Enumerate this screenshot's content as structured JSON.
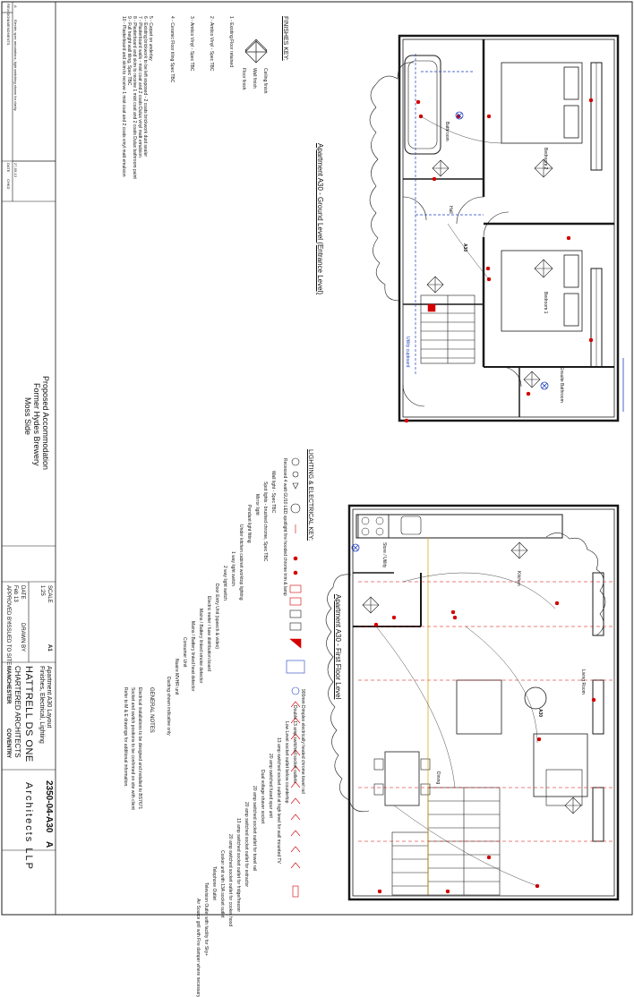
{
  "ground_floor": {
    "title": "Apartment A30 - Ground Level (Entrance Level)",
    "apartment": "A30",
    "rooms": [
      "Bedroom 2",
      "Bedroom 1",
      "Bathroom",
      "Hall",
      "Ensuite Bathroom"
    ],
    "store": "Utility cupboard"
  },
  "first_floor": {
    "title": "Apartment A30 - First Floor Level",
    "apartment": "A30",
    "rooms": [
      "Living Room",
      "Dining",
      "Kitchen",
      "Store / Utility"
    ]
  },
  "finishes_key": {
    "heading": "FINISHES KEY:",
    "diagram_labels": [
      "Ceiling finish",
      "Wall finish",
      "Floor finish"
    ],
    "items": [
      "1 - Existing Floor retained",
      "2 - Amtico Vinyl - Spec TBC",
      "3 - Amtico Vinyl - Spec TBC",
      "4 - Ceramic Floor tiling Spec TBC",
      "5 - Carpet on underlay",
      "6 - Existing brickwork to be left exposed - 2 coats brickwork dust sealer",
      "7 - Plasterboard walls - mist coat and 2 coats Dulux vinyl matt emulsion",
      "8 - Plasterboard and skim to receive 1 mist coat and 2 coats Dulux bathroom paint",
      "9 - Full height wall tiling, Spec TBC",
      "10 - Plasterboard and skim to receive 1 mist coat and 2 coats vinyl matt emulsion"
    ]
  },
  "lighting_key": {
    "heading": "LIGHTING & ELECTRICAL KEY:",
    "items": [
      "Recessed 4 watt GU10 LED spotlight fire hooded chrome trim & lamp",
      "Wall light - Spec TBC",
      "Spot lights - brushed chrome, Spec TBC",
      "Mirror light",
      "Pendant light fitting",
      "Under kitchen cabinet worktop lighting",
      "1 way light switch",
      "2 way light switch",
      "Door Entry Unit (speech & video)",
      "Electric meter / fuse distribution board",
      "Mains / Battery linked smoke detector",
      "Mains / Battery linked heat detector",
      "Consumer Unit",
      "Nuaire MVHR unit",
      "Ducting shown indicative only"
    ]
  },
  "electrical_key": {
    "items": [
      "900mm Dimplex electrically heated chrome towel rail",
      "Double 13 amp switched socket outlets",
      "Low Level socket outlet below countertop",
      "13 amp switched socket outlet at high level for wall mounted TV",
      "20 amp switched fused spur unit",
      "Dual voltage shaver socket",
      "20 amp switched socket outlet for towel rail",
      "20 amp switched socket outlet for extractor",
      "13 amp switched socket outlet for fridge/freezer",
      "20 amp switched socket outlet for cooker hood",
      "Cooker unit with 13A socket outlet",
      "Telephone Outlet",
      "Television Outlet with facility for Sky+",
      "Air Source grill with Fire damper where necessary"
    ],
    "notes_heading": "GENERAL NOTES",
    "notes": [
      "Electrical installations to be designed and installed to BS7671",
      "Socket and switch positions to be confirmed on site with client",
      "Refer to M & E drawings for additional information."
    ]
  },
  "revision": {
    "headers": [
      "REVISION",
      "AMENDMENTS",
      "DATE",
      "CHKD"
    ],
    "rows": [
      [
        "A",
        "Electric spec annotations, light switching shown for clarity.",
        "27-09-13",
        ""
      ]
    ]
  },
  "title_block": {
    "project_lines": [
      "Proposed Accommodation",
      "Former Hydes Brewery",
      "Moss Side"
    ],
    "drawing_title_lines": [
      "Apartment A30 Layout",
      "Finishes, Electrical, Lighting"
    ],
    "scale_label": "SCALE",
    "scale": "1:25",
    "paper_size": "A1",
    "date_label": "DATE",
    "date": "Feb 13",
    "drawn_label": "DRAWN BY",
    "approved_label": "APPROVED BY",
    "issued_label": "ISSUED TO SITE",
    "drawing_no": "2350-04-A30",
    "revision": "A",
    "firm_name_1": "HATTRELL DS ONE",
    "firm_name_2": "Architects LLP",
    "firm_sub": "CHARTERED ARCHITECTS",
    "offices": [
      "MANCHESTER",
      "COVENTRY"
    ]
  },
  "colors": {
    "line": "#1a1a1a",
    "accent_red": "#d40000",
    "accent_blue": "#1f3fbf",
    "grey": "#9a9a9a"
  }
}
